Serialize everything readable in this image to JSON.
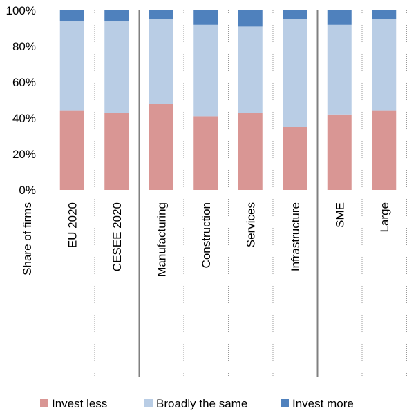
{
  "chart_data": {
    "type": "bar",
    "stacked": true,
    "orientation": "vertical",
    "ylabel": "Share of firms",
    "ylim": [
      0,
      100
    ],
    "yticks": [
      "0%",
      "20%",
      "40%",
      "60%",
      "80%",
      "100%"
    ],
    "grid": false,
    "legend_position": "bottom",
    "categories": [
      "EU 2020",
      "CESEE 2020",
      "Manufacturing",
      "Construction",
      "Services",
      "Infrastructure",
      "SME",
      "Large"
    ],
    "series": [
      {
        "name": "Invest less",
        "color": "#d99694",
        "values": [
          44,
          43,
          48,
          41,
          43,
          35,
          42,
          44
        ]
      },
      {
        "name": "Broadly the same",
        "color": "#b9cde5",
        "values": [
          50,
          51,
          47,
          51,
          48,
          60,
          50,
          51
        ]
      },
      {
        "name": "Invest more",
        "color": "#4f81bd",
        "values": [
          6,
          6,
          5,
          8,
          9,
          5,
          8,
          5
        ]
      }
    ],
    "group_separators_after": [
      1,
      5
    ]
  }
}
